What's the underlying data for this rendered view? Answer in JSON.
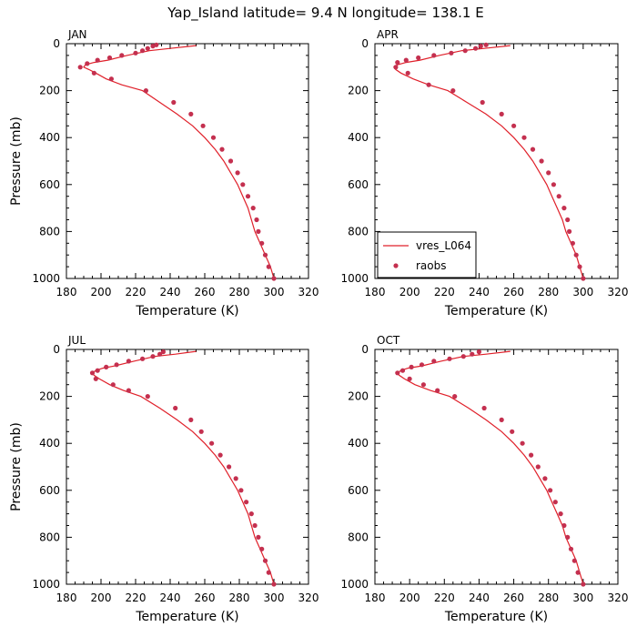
{
  "title": "Yap_Island  latitude= 9.4 N longitude= 138.1 E",
  "colors": {
    "model_line": "#e0202a",
    "obs_marker": "#c4304f",
    "axis": "#000000"
  },
  "legend": {
    "model_label": "vres_L064",
    "obs_label": "raobs"
  },
  "chart_data": [
    {
      "type": "line",
      "panel_label": "JAN",
      "xlabel": "Temperature (K)",
      "ylabel": "Pressure (mb)",
      "xlim": [
        180,
        320
      ],
      "ylim": [
        1000,
        0
      ],
      "xticks": [
        "180",
        "200",
        "220",
        "240",
        "260",
        "280",
        "300",
        "320"
      ],
      "yticks": [
        "0",
        "200",
        "400",
        "600",
        "800",
        "1000"
      ],
      "series": [
        {
          "name": "vres_L064",
          "style": "line",
          "x": [
            300,
            298,
            295,
            292,
            289,
            287,
            285,
            282,
            279,
            275,
            271,
            266,
            260,
            253,
            244,
            234,
            224,
            212,
            203,
            197,
            193,
            190,
            191,
            196,
            204,
            215,
            228,
            240,
            255
          ],
          "y": [
            1000,
            950,
            900,
            850,
            800,
            750,
            700,
            650,
            600,
            550,
            500,
            450,
            400,
            350,
            300,
            250,
            200,
            175,
            150,
            125,
            110,
            100,
            90,
            80,
            70,
            50,
            30,
            20,
            8
          ]
        },
        {
          "name": "raobs",
          "style": "markers",
          "x": [
            300,
            297,
            295,
            293,
            291,
            290,
            288,
            285,
            282,
            279,
            275,
            270,
            265,
            259,
            252,
            242,
            226,
            206,
            196,
            188,
            192,
            198,
            205,
            212,
            220,
            224,
            227,
            230,
            232
          ],
          "y": [
            1000,
            950,
            900,
            850,
            800,
            750,
            700,
            650,
            600,
            550,
            500,
            450,
            400,
            350,
            300,
            250,
            200,
            150,
            125,
            100,
            85,
            70,
            60,
            50,
            40,
            30,
            20,
            10,
            5
          ]
        }
      ]
    },
    {
      "type": "line",
      "panel_label": "APR",
      "xlabel": "Temperature (K)",
      "ylabel": "",
      "xlim": [
        180,
        320
      ],
      "ylim": [
        1000,
        0
      ],
      "xticks": [
        "180",
        "200",
        "220",
        "240",
        "260",
        "280",
        "300",
        "320"
      ],
      "yticks": [
        "0",
        "200",
        "400",
        "600",
        "800",
        "1000"
      ],
      "legend": true,
      "series": [
        {
          "name": "vres_L064",
          "style": "line",
          "x": [
            300,
            298,
            296,
            293,
            290,
            288,
            285,
            282,
            279,
            275,
            271,
            266,
            260,
            253,
            244,
            233,
            222,
            211,
            202,
            195,
            192,
            191,
            193,
            198,
            206,
            217,
            230,
            243,
            258
          ],
          "y": [
            1000,
            950,
            900,
            850,
            800,
            750,
            700,
            650,
            600,
            550,
            500,
            450,
            400,
            350,
            300,
            250,
            200,
            175,
            150,
            125,
            110,
            100,
            90,
            80,
            70,
            50,
            30,
            20,
            8
          ]
        },
        {
          "name": "raobs",
          "style": "markers",
          "x": [
            300,
            298,
            296,
            294,
            292,
            291,
            289,
            286,
            283,
            280,
            276,
            271,
            266,
            260,
            253,
            242,
            225,
            211,
            199,
            192,
            193,
            198,
            205,
            214,
            224,
            232,
            238,
            241,
            244
          ],
          "y": [
            1000,
            950,
            900,
            850,
            800,
            750,
            700,
            650,
            600,
            550,
            500,
            450,
            400,
            350,
            300,
            250,
            200,
            175,
            125,
            100,
            80,
            70,
            60,
            50,
            40,
            30,
            20,
            10,
            5
          ]
        }
      ]
    },
    {
      "type": "line",
      "panel_label": "JUL",
      "xlabel": "Temperature (K)",
      "ylabel": "Pressure (mb)",
      "xlim": [
        180,
        320
      ],
      "ylim": [
        1000,
        0
      ],
      "xticks": [
        "180",
        "200",
        "220",
        "240",
        "260",
        "280",
        "300",
        "320"
      ],
      "yticks": [
        "0",
        "200",
        "400",
        "600",
        "800",
        "1000"
      ],
      "series": [
        {
          "name": "vres_L064",
          "style": "line",
          "x": [
            300,
            298,
            295,
            292,
            289,
            287,
            285,
            282,
            279,
            275,
            271,
            266,
            260,
            253,
            244,
            234,
            223,
            213,
            205,
            199,
            196,
            195,
            197,
            201,
            208,
            219,
            231,
            243,
            255
          ],
          "y": [
            1000,
            950,
            900,
            850,
            800,
            750,
            700,
            650,
            600,
            550,
            500,
            450,
            400,
            350,
            300,
            250,
            200,
            175,
            150,
            125,
            110,
            100,
            90,
            80,
            70,
            50,
            30,
            20,
            8
          ]
        },
        {
          "name": "raobs",
          "style": "markers",
          "x": [
            300,
            297,
            295,
            293,
            291,
            289,
            287,
            284,
            281,
            278,
            274,
            269,
            264,
            258,
            252,
            243,
            227,
            216,
            207,
            197,
            195,
            198,
            203,
            209,
            216,
            224,
            230,
            234,
            236
          ],
          "y": [
            1000,
            950,
            900,
            850,
            800,
            750,
            700,
            650,
            600,
            550,
            500,
            450,
            400,
            350,
            300,
            250,
            200,
            175,
            150,
            125,
            100,
            90,
            75,
            65,
            50,
            40,
            30,
            20,
            10
          ]
        }
      ]
    },
    {
      "type": "line",
      "panel_label": "OCT",
      "xlabel": "Temperature (K)",
      "ylabel": "",
      "xlim": [
        180,
        320
      ],
      "ylim": [
        1000,
        0
      ],
      "xticks": [
        "180",
        "200",
        "220",
        "240",
        "260",
        "280",
        "300",
        "320"
      ],
      "yticks": [
        "0",
        "200",
        "400",
        "600",
        "800",
        "1000"
      ],
      "series": [
        {
          "name": "vres_L064",
          "style": "line",
          "x": [
            300,
            298,
            296,
            293,
            290,
            288,
            285,
            282,
            279,
            275,
            271,
            266,
            260,
            253,
            244,
            234,
            223,
            212,
            203,
            197,
            194,
            193,
            195,
            199,
            207,
            218,
            231,
            244,
            258
          ],
          "y": [
            1000,
            950,
            900,
            850,
            800,
            750,
            700,
            650,
            600,
            550,
            500,
            450,
            400,
            350,
            300,
            250,
            200,
            175,
            150,
            125,
            110,
            100,
            90,
            80,
            70,
            50,
            30,
            20,
            8
          ]
        },
        {
          "name": "raobs",
          "style": "markers",
          "x": [
            300,
            297,
            295,
            293,
            291,
            289,
            287,
            284,
            281,
            278,
            274,
            270,
            265,
            259,
            253,
            243,
            226,
            216,
            208,
            200,
            193,
            196,
            201,
            207,
            214,
            223,
            231,
            236,
            240
          ],
          "y": [
            1000,
            950,
            900,
            850,
            800,
            750,
            700,
            650,
            600,
            550,
            500,
            450,
            400,
            350,
            300,
            250,
            200,
            175,
            150,
            125,
            100,
            90,
            75,
            65,
            50,
            40,
            30,
            20,
            10
          ]
        }
      ]
    }
  ]
}
